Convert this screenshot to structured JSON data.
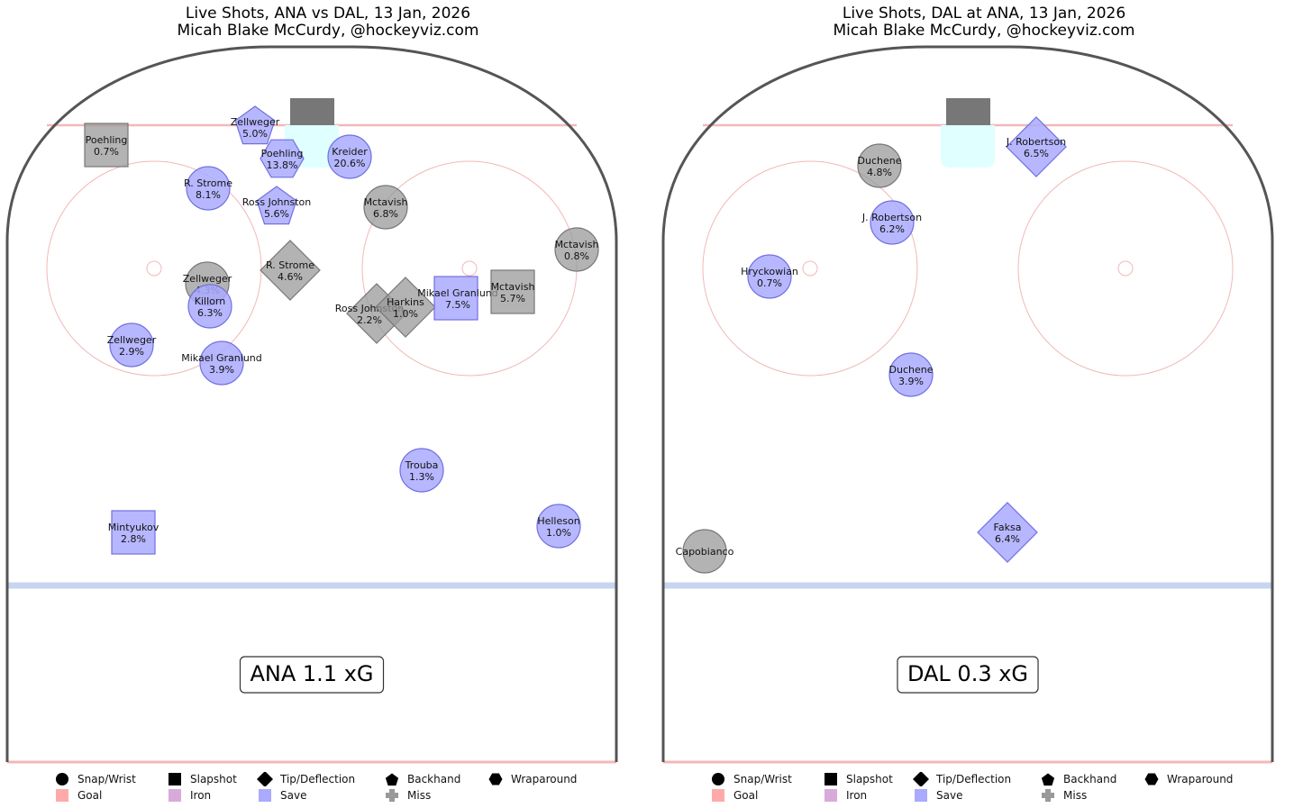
{
  "colors": {
    "goal": "#ffaaaa",
    "iron": "#d9aad9",
    "save": "#aaaaff",
    "save_stroke": "#7070e0",
    "miss": "#999999",
    "miss_stroke": "#777777",
    "blue_line": "#c8d4f0",
    "red_line": "#f2b8b8",
    "crease": "#e0ffff",
    "net": "#777777"
  },
  "legend": {
    "shapes": [
      {
        "label": "Snap/Wrist",
        "icon": "circle-icon"
      },
      {
        "label": "Slapshot",
        "icon": "square-icon"
      },
      {
        "label": "Tip/Deflection",
        "icon": "diamond-icon"
      },
      {
        "label": "Backhand",
        "icon": "pentagon-icon"
      },
      {
        "label": "Wraparound",
        "icon": "hexagon-icon"
      }
    ],
    "outcomes": [
      {
        "label": "Goal",
        "icon": "goal-swatch"
      },
      {
        "label": "Iron",
        "icon": "iron-swatch"
      },
      {
        "label": "Save",
        "icon": "save-swatch"
      },
      {
        "label": "Miss",
        "icon": "plus-icon"
      }
    ]
  },
  "chart_data": [
    {
      "type": "scatter",
      "title": "Live Shots, ANA vs DAL, 13 Jan, 2026",
      "subtitle": "Micah Blake McCurdy, @hockeyviz.com",
      "summary": "ANA 1.1 xG",
      "shots": [
        {
          "player": "Poehling",
          "xg": "0.7%",
          "shot_type": "slapshot",
          "result": "miss"
        },
        {
          "player": "Zellweger",
          "xg": "5.0%",
          "shot_type": "backhand",
          "result": "save"
        },
        {
          "player": "Poehling",
          "xg": "13.8%",
          "shot_type": "wraparound",
          "result": "save"
        },
        {
          "player": "Kreider",
          "xg": "20.6%",
          "shot_type": "snap-wrist",
          "result": "save"
        },
        {
          "player": "R. Strome",
          "xg": "8.1%",
          "shot_type": "snap-wrist",
          "result": "save"
        },
        {
          "player": "Ross Johnston",
          "xg": "5.6%",
          "shot_type": "backhand",
          "result": "save"
        },
        {
          "player": "Mctavish",
          "xg": "6.8%",
          "shot_type": "snap-wrist",
          "result": "miss"
        },
        {
          "player": "Mctavish",
          "xg": "0.8%",
          "shot_type": "snap-wrist",
          "result": "miss"
        },
        {
          "player": "R. Strome",
          "xg": "4.6%",
          "shot_type": "tip-deflection",
          "result": "miss"
        },
        {
          "player": "Zellweger",
          "xg": "4.3%",
          "shot_type": "snap-wrist",
          "result": "miss"
        },
        {
          "player": "Killorn",
          "xg": "6.3%",
          "shot_type": "snap-wrist",
          "result": "save"
        },
        {
          "player": "Ross Johnston",
          "xg": "2.2%",
          "shot_type": "tip-deflection",
          "result": "miss"
        },
        {
          "player": "Harkins",
          "xg": "1.0%",
          "shot_type": "tip-deflection",
          "result": "miss"
        },
        {
          "player": "Mikael Granlund",
          "xg": "7.5%",
          "shot_type": "slapshot",
          "result": "save"
        },
        {
          "player": "Mctavish",
          "xg": "5.7%",
          "shot_type": "slapshot",
          "result": "miss"
        },
        {
          "player": "Zellweger",
          "xg": "2.9%",
          "shot_type": "snap-wrist",
          "result": "save"
        },
        {
          "player": "Mikael Granlund",
          "xg": "3.9%",
          "shot_type": "snap-wrist",
          "result": "save"
        },
        {
          "player": "Trouba",
          "xg": "1.3%",
          "shot_type": "snap-wrist",
          "result": "save"
        },
        {
          "player": "Helleson",
          "xg": "1.0%",
          "shot_type": "snap-wrist",
          "result": "save"
        },
        {
          "player": "Mintyukov",
          "xg": "2.8%",
          "shot_type": "slapshot",
          "result": "save"
        }
      ]
    },
    {
      "type": "scatter",
      "title": "Live Shots, DAL at ANA, 13 Jan, 2026",
      "subtitle": "Micah Blake McCurdy, @hockeyviz.com",
      "summary": "DAL 0.3 xG",
      "shots": [
        {
          "player": "J. Robertson",
          "xg": "6.5%",
          "shot_type": "tip-deflection",
          "result": "save"
        },
        {
          "player": "Duchene",
          "xg": "4.8%",
          "shot_type": "snap-wrist",
          "result": "miss"
        },
        {
          "player": "J. Robertson",
          "xg": "6.2%",
          "shot_type": "snap-wrist",
          "result": "save"
        },
        {
          "player": "Hryckowian",
          "xg": "0.7%",
          "shot_type": "snap-wrist",
          "result": "save"
        },
        {
          "player": "Duchene",
          "xg": "3.9%",
          "shot_type": "snap-wrist",
          "result": "save"
        },
        {
          "player": "Faksa",
          "xg": "6.4%",
          "shot_type": "tip-deflection",
          "result": "save"
        },
        {
          "player": "Capobianco",
          "xg": "",
          "shot_type": "snap-wrist",
          "result": "miss"
        }
      ]
    }
  ]
}
